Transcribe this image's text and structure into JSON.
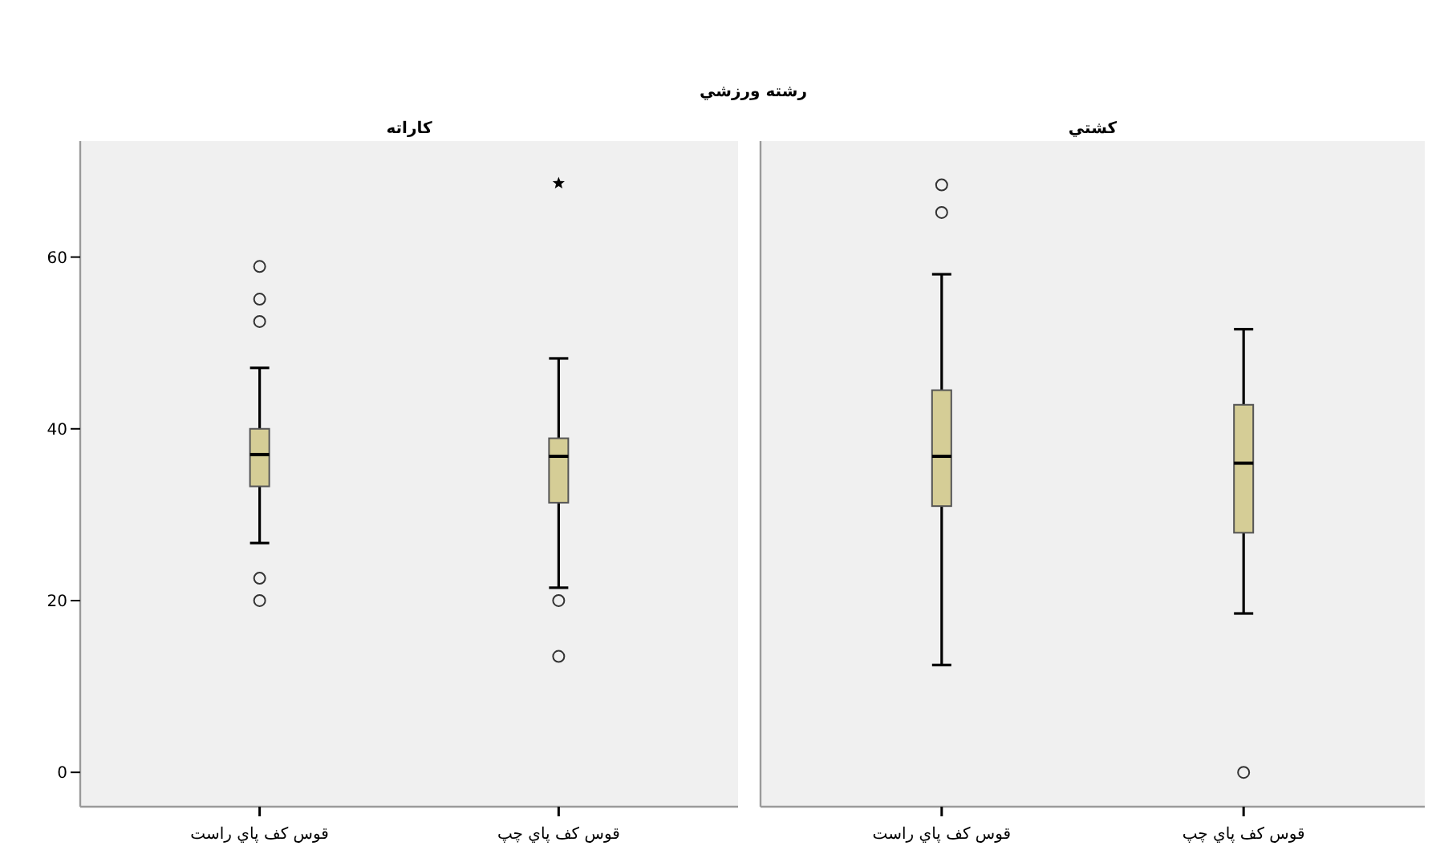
{
  "chart_data": [
    {
      "type": "box",
      "title": "رشته ورزشي",
      "subtitle": "کاراته",
      "categories": [
        "قوس کف پاي راست",
        "قوس کف پاي چپ"
      ],
      "color": "#d5cd96",
      "boxes": [
        {
          "low": 26.7,
          "q1": 33.3,
          "median": 37,
          "q3": 40,
          "high": 47.1,
          "outliers": [
            58.9,
            55.1,
            52.5,
            22.6,
            20
          ]
        },
        {
          "low": 21.5,
          "q1": 31.4,
          "median": 36.8,
          "q3": 38.9,
          "high": 48.2,
          "outliers": [
            68.6,
            20,
            13.5
          ]
        }
      ],
      "ylim": [
        -4,
        73.5
      ],
      "yticks": [
        0,
        20,
        40,
        60
      ]
    },
    {
      "type": "box",
      "subtitle": "کشتي",
      "categories": [
        "قوس کف پاي راست",
        "قوس کف پاي چپ"
      ],
      "color": "#d5cd96",
      "boxes": [
        {
          "low": 12.5,
          "q1": 31,
          "median": 36.8,
          "q3": 44.5,
          "high": 58,
          "outliers": [
            68.4,
            65.2
          ]
        },
        {
          "low": 18.5,
          "q1": 27.9,
          "median": 36,
          "q3": 42.8,
          "high": 51.6,
          "outliers": [
            0
          ]
        }
      ],
      "ylim": [
        -4,
        73.5
      ],
      "tick_labels": "x"
    }
  ]
}
